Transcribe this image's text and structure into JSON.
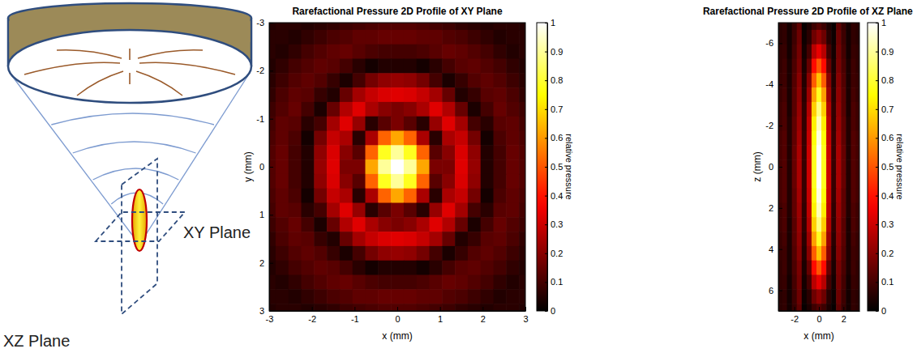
{
  "diagram": {
    "xy_plane_label": "XY Plane",
    "xz_plane_label": "XZ Plane"
  },
  "chart_data": [
    {
      "type": "heatmap",
      "title": "Rarefactional Pressure 2D Profile of XY Plane",
      "x_label": "x (mm)",
      "y_label": "y (mm)",
      "xlim": [
        -3,
        3
      ],
      "ylim": [
        -3,
        3
      ],
      "xticks": [
        -3,
        -2,
        -1,
        0,
        1,
        2,
        3
      ],
      "yticks": [
        -3,
        -2,
        -1,
        0,
        1,
        2,
        3
      ],
      "x": [
        -3,
        -2.7,
        -2.4,
        -2.1,
        -1.8,
        -1.5,
        -1.2,
        -0.9,
        -0.6,
        -0.3,
        0,
        0.3,
        0.6,
        0.9,
        1.2,
        1.5,
        1.8,
        2.1,
        2.4,
        2.7,
        3
      ],
      "y": [
        -3,
        -2.7,
        -2.4,
        -2.1,
        -1.8,
        -1.5,
        -1.2,
        -0.9,
        -0.6,
        -0.3,
        0,
        0.3,
        0.6,
        0.9,
        1.2,
        1.5,
        1.8,
        2.1,
        2.4,
        2.7,
        3
      ],
      "values": [
        [
          0.05,
          0.06,
          0.06,
          0.05,
          0.06,
          0.07,
          0.09,
          0.1,
          0.11,
          0.12,
          0.12,
          0.12,
          0.11,
          0.1,
          0.09,
          0.07,
          0.06,
          0.05,
          0.06,
          0.06,
          0.05
        ],
        [
          0.06,
          0.06,
          0.05,
          0.07,
          0.09,
          0.11,
          0.12,
          0.14,
          0.14,
          0.15,
          0.15,
          0.15,
          0.14,
          0.14,
          0.12,
          0.11,
          0.09,
          0.07,
          0.05,
          0.06,
          0.06
        ],
        [
          0.06,
          0.05,
          0.07,
          0.1,
          0.12,
          0.14,
          0.15,
          0.13,
          0.11,
          0.1,
          0.1,
          0.1,
          0.11,
          0.13,
          0.15,
          0.14,
          0.12,
          0.1,
          0.07,
          0.05,
          0.06
        ],
        [
          0.05,
          0.07,
          0.1,
          0.12,
          0.14,
          0.13,
          0.1,
          0.06,
          0.03,
          0.05,
          0.05,
          0.05,
          0.03,
          0.06,
          0.1,
          0.13,
          0.14,
          0.12,
          0.1,
          0.07,
          0.05
        ],
        [
          0.06,
          0.09,
          0.12,
          0.14,
          0.12,
          0.08,
          0.04,
          0.1,
          0.17,
          0.21,
          0.22,
          0.21,
          0.17,
          0.1,
          0.04,
          0.08,
          0.12,
          0.14,
          0.12,
          0.09,
          0.06
        ],
        [
          0.07,
          0.11,
          0.14,
          0.13,
          0.08,
          0.05,
          0.15,
          0.24,
          0.29,
          0.32,
          0.33,
          0.32,
          0.29,
          0.24,
          0.15,
          0.05,
          0.08,
          0.13,
          0.14,
          0.11,
          0.07
        ],
        [
          0.09,
          0.12,
          0.15,
          0.1,
          0.04,
          0.15,
          0.26,
          0.33,
          0.25,
          0.2,
          0.18,
          0.2,
          0.25,
          0.33,
          0.26,
          0.15,
          0.04,
          0.1,
          0.15,
          0.12,
          0.09
        ],
        [
          0.1,
          0.14,
          0.13,
          0.06,
          0.1,
          0.24,
          0.33,
          0.22,
          0.06,
          0.13,
          0.18,
          0.13,
          0.06,
          0.22,
          0.33,
          0.24,
          0.1,
          0.06,
          0.13,
          0.14,
          0.1
        ],
        [
          0.11,
          0.14,
          0.11,
          0.03,
          0.17,
          0.29,
          0.25,
          0.06,
          0.25,
          0.52,
          0.62,
          0.52,
          0.25,
          0.06,
          0.25,
          0.29,
          0.17,
          0.03,
          0.11,
          0.14,
          0.11
        ],
        [
          0.12,
          0.15,
          0.1,
          0.05,
          0.21,
          0.32,
          0.2,
          0.13,
          0.52,
          0.78,
          0.9,
          0.78,
          0.52,
          0.13,
          0.2,
          0.32,
          0.21,
          0.05,
          0.1,
          0.15,
          0.12
        ],
        [
          0.12,
          0.15,
          0.1,
          0.05,
          0.22,
          0.33,
          0.18,
          0.18,
          0.62,
          0.9,
          1,
          0.9,
          0.62,
          0.18,
          0.18,
          0.33,
          0.22,
          0.05,
          0.1,
          0.15,
          0.12
        ],
        [
          0.12,
          0.15,
          0.1,
          0.05,
          0.21,
          0.32,
          0.2,
          0.13,
          0.52,
          0.78,
          0.9,
          0.78,
          0.52,
          0.13,
          0.2,
          0.32,
          0.21,
          0.05,
          0.1,
          0.15,
          0.12
        ],
        [
          0.11,
          0.14,
          0.11,
          0.03,
          0.17,
          0.29,
          0.25,
          0.06,
          0.25,
          0.52,
          0.62,
          0.52,
          0.25,
          0.06,
          0.25,
          0.29,
          0.17,
          0.03,
          0.11,
          0.14,
          0.11
        ],
        [
          0.1,
          0.14,
          0.13,
          0.06,
          0.1,
          0.24,
          0.33,
          0.22,
          0.06,
          0.13,
          0.18,
          0.13,
          0.06,
          0.22,
          0.33,
          0.24,
          0.1,
          0.06,
          0.13,
          0.14,
          0.1
        ],
        [
          0.09,
          0.12,
          0.15,
          0.1,
          0.04,
          0.15,
          0.26,
          0.33,
          0.25,
          0.2,
          0.18,
          0.2,
          0.25,
          0.33,
          0.26,
          0.15,
          0.04,
          0.1,
          0.15,
          0.12,
          0.09
        ],
        [
          0.07,
          0.11,
          0.14,
          0.13,
          0.08,
          0.05,
          0.15,
          0.24,
          0.29,
          0.32,
          0.33,
          0.32,
          0.29,
          0.24,
          0.15,
          0.05,
          0.08,
          0.13,
          0.14,
          0.11,
          0.07
        ],
        [
          0.06,
          0.09,
          0.12,
          0.14,
          0.12,
          0.08,
          0.04,
          0.1,
          0.17,
          0.21,
          0.22,
          0.21,
          0.17,
          0.1,
          0.04,
          0.08,
          0.12,
          0.14,
          0.12,
          0.09,
          0.06
        ],
        [
          0.05,
          0.07,
          0.1,
          0.12,
          0.14,
          0.13,
          0.1,
          0.06,
          0.03,
          0.05,
          0.05,
          0.05,
          0.03,
          0.06,
          0.1,
          0.13,
          0.14,
          0.12,
          0.1,
          0.07,
          0.05
        ],
        [
          0.06,
          0.05,
          0.07,
          0.1,
          0.12,
          0.14,
          0.15,
          0.13,
          0.11,
          0.1,
          0.1,
          0.1,
          0.11,
          0.13,
          0.15,
          0.14,
          0.12,
          0.1,
          0.07,
          0.05,
          0.06
        ],
        [
          0.06,
          0.06,
          0.05,
          0.07,
          0.09,
          0.11,
          0.12,
          0.14,
          0.14,
          0.15,
          0.15,
          0.15,
          0.14,
          0.14,
          0.12,
          0.11,
          0.09,
          0.07,
          0.05,
          0.06,
          0.06
        ],
        [
          0.05,
          0.06,
          0.06,
          0.05,
          0.06,
          0.07,
          0.09,
          0.1,
          0.11,
          0.12,
          0.12,
          0.12,
          0.11,
          0.1,
          0.09,
          0.07,
          0.06,
          0.05,
          0.06,
          0.06,
          0.05
        ]
      ],
      "colorbar": {
        "label": "relative pressure",
        "range": [
          0,
          1
        ],
        "ticks": [
          0,
          0.1,
          0.2,
          0.3,
          0.4,
          0.5,
          0.6,
          0.7,
          0.8,
          0.9,
          1
        ]
      }
    },
    {
      "type": "heatmap",
      "title": "Rarefactional Pressure 2D Profile of XZ Plane",
      "x_label": "x (mm)",
      "y_label": "z (mm)",
      "xlim": [
        -3.3,
        3.3
      ],
      "ylim": [
        -7,
        7
      ],
      "xticks": [
        -2,
        0,
        2
      ],
      "yticks": [
        -6,
        -4,
        -2,
        0,
        2,
        4,
        6
      ],
      "x": [
        -3.2,
        -2.8,
        -2.4,
        -2,
        -1.6,
        -1.2,
        -0.8,
        -0.4,
        0,
        0.4,
        0.8,
        1.2,
        1.6,
        2,
        2.4,
        2.8,
        3.2
      ],
      "y": [
        -7,
        -6.3,
        -5.6,
        -4.9,
        -4.2,
        -3.5,
        -2.8,
        -2.1,
        -1.4,
        -0.7,
        0,
        0.7,
        1.4,
        2.1,
        2.8,
        3.5,
        4.2,
        4.9,
        5.6,
        6.3,
        7
      ],
      "values": [
        [
          0.06,
          0.07,
          0.03,
          0.08,
          0.14,
          0.01,
          0.04,
          0.09,
          0.12,
          0.09,
          0.04,
          0.01,
          0.14,
          0.08,
          0.03,
          0.07,
          0.06
        ],
        [
          0.06,
          0.07,
          0.03,
          0.09,
          0.16,
          0.02,
          0.06,
          0.16,
          0.21,
          0.16,
          0.06,
          0.02,
          0.16,
          0.09,
          0.03,
          0.07,
          0.06
        ],
        [
          0.07,
          0.08,
          0.03,
          0.1,
          0.17,
          0.03,
          0.1,
          0.27,
          0.34,
          0.27,
          0.1,
          0.03,
          0.17,
          0.1,
          0.03,
          0.08,
          0.07
        ],
        [
          0.07,
          0.09,
          0.04,
          0.11,
          0.18,
          0.04,
          0.15,
          0.39,
          0.5,
          0.39,
          0.15,
          0.04,
          0.18,
          0.11,
          0.04,
          0.09,
          0.07
        ],
        [
          0.08,
          0.09,
          0.04,
          0.12,
          0.2,
          0.05,
          0.2,
          0.51,
          0.66,
          0.51,
          0.2,
          0.05,
          0.2,
          0.12,
          0.04,
          0.09,
          0.08
        ],
        [
          0.08,
          0.1,
          0.04,
          0.13,
          0.21,
          0.06,
          0.23,
          0.61,
          0.78,
          0.61,
          0.23,
          0.06,
          0.21,
          0.13,
          0.04,
          0.1,
          0.08
        ],
        [
          0.09,
          0.11,
          0.04,
          0.13,
          0.22,
          0.07,
          0.26,
          0.68,
          0.87,
          0.68,
          0.26,
          0.07,
          0.22,
          0.13,
          0.04,
          0.11,
          0.09
        ],
        [
          0.09,
          0.11,
          0.05,
          0.14,
          0.23,
          0.07,
          0.28,
          0.73,
          0.93,
          0.73,
          0.28,
          0.07,
          0.23,
          0.14,
          0.05,
          0.11,
          0.09
        ],
        [
          0.1,
          0.12,
          0.05,
          0.14,
          0.24,
          0.08,
          0.29,
          0.76,
          0.97,
          0.76,
          0.29,
          0.08,
          0.24,
          0.14,
          0.05,
          0.12,
          0.1
        ],
        [
          0.1,
          0.12,
          0.05,
          0.15,
          0.25,
          0.08,
          0.3,
          0.78,
          1,
          0.78,
          0.3,
          0.08,
          0.25,
          0.15,
          0.05,
          0.12,
          0.1
        ],
        [
          0.1,
          0.12,
          0.05,
          0.15,
          0.25,
          0.08,
          0.3,
          0.78,
          1,
          0.78,
          0.3,
          0.08,
          0.25,
          0.15,
          0.05,
          0.12,
          0.1
        ],
        [
          0.1,
          0.12,
          0.05,
          0.15,
          0.25,
          0.08,
          0.3,
          0.78,
          1,
          0.78,
          0.3,
          0.08,
          0.25,
          0.15,
          0.05,
          0.12,
          0.1
        ],
        [
          0.1,
          0.12,
          0.05,
          0.14,
          0.24,
          0.08,
          0.29,
          0.76,
          0.97,
          0.76,
          0.29,
          0.08,
          0.24,
          0.14,
          0.05,
          0.12,
          0.1
        ],
        [
          0.09,
          0.11,
          0.05,
          0.14,
          0.23,
          0.07,
          0.28,
          0.73,
          0.93,
          0.73,
          0.28,
          0.07,
          0.23,
          0.14,
          0.05,
          0.11,
          0.09
        ],
        [
          0.09,
          0.11,
          0.04,
          0.13,
          0.22,
          0.07,
          0.26,
          0.68,
          0.87,
          0.68,
          0.26,
          0.07,
          0.22,
          0.13,
          0.04,
          0.11,
          0.09
        ],
        [
          0.08,
          0.1,
          0.04,
          0.13,
          0.21,
          0.06,
          0.23,
          0.61,
          0.78,
          0.61,
          0.23,
          0.06,
          0.21,
          0.13,
          0.04,
          0.1,
          0.08
        ],
        [
          0.08,
          0.09,
          0.04,
          0.12,
          0.2,
          0.05,
          0.2,
          0.51,
          0.66,
          0.51,
          0.2,
          0.05,
          0.2,
          0.12,
          0.04,
          0.09,
          0.08
        ],
        [
          0.07,
          0.09,
          0.04,
          0.11,
          0.18,
          0.04,
          0.15,
          0.39,
          0.5,
          0.39,
          0.15,
          0.04,
          0.18,
          0.11,
          0.04,
          0.09,
          0.07
        ],
        [
          0.07,
          0.08,
          0.03,
          0.1,
          0.17,
          0.03,
          0.1,
          0.27,
          0.34,
          0.27,
          0.1,
          0.03,
          0.17,
          0.1,
          0.03,
          0.08,
          0.07
        ],
        [
          0.06,
          0.07,
          0.03,
          0.09,
          0.16,
          0.02,
          0.06,
          0.16,
          0.21,
          0.16,
          0.06,
          0.02,
          0.16,
          0.09,
          0.03,
          0.07,
          0.06
        ],
        [
          0.06,
          0.07,
          0.03,
          0.08,
          0.14,
          0.01,
          0.04,
          0.09,
          0.12,
          0.09,
          0.04,
          0.01,
          0.14,
          0.08,
          0.03,
          0.07,
          0.06
        ]
      ],
      "colorbar": {
        "label": "relative pressure",
        "range": [
          0,
          1
        ],
        "ticks": [
          0,
          0.1,
          0.2,
          0.3,
          0.4,
          0.5,
          0.6,
          0.7,
          0.8,
          0.9,
          1
        ]
      }
    }
  ]
}
